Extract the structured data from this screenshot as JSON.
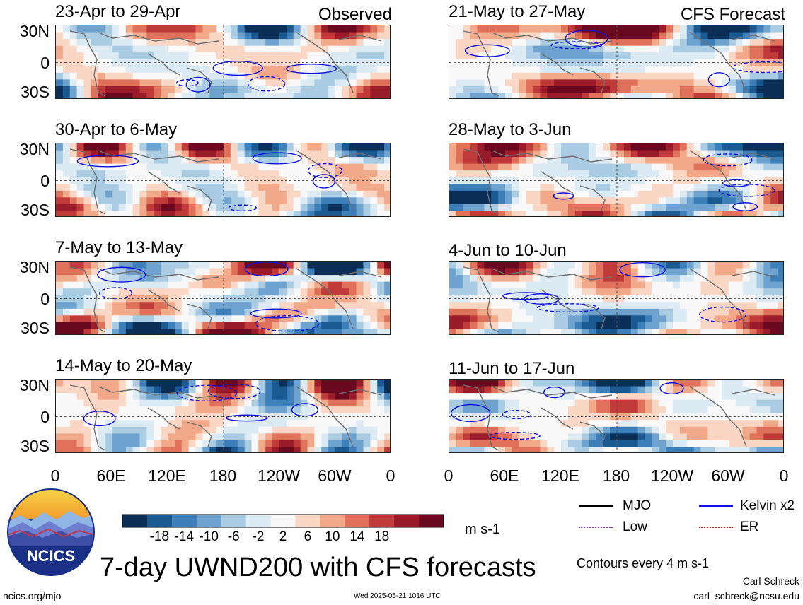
{
  "chart_data": {
    "type": "heatmap",
    "title": "7-day UWND200 with CFS forecasts",
    "colorbar": {
      "unit_label": "m s-1",
      "tick_labels": [
        "-18",
        "-14",
        "-10",
        "-6",
        "-2",
        "2",
        "6",
        "10",
        "14",
        "18"
      ],
      "colors": [
        "#0b2f57",
        "#1a5a91",
        "#3d7fb8",
        "#6ea3cf",
        "#a9cce3",
        "#dceaf3",
        "#f8f8f8",
        "#f9d7c4",
        "#f2a98a",
        "#e0725c",
        "#c03a3a",
        "#9a1b2a",
        "#6a0a20"
      ]
    },
    "y_tick_labels": [
      "30N",
      "0",
      "30S"
    ],
    "x_tick_labels": [
      "0",
      "60E",
      "120E",
      "180",
      "120W",
      "60W",
      "0"
    ],
    "columns": [
      {
        "header": "Observed",
        "panels": [
          {
            "title": "23-Apr to 29-Apr",
            "seed": 11
          },
          {
            "title": "30-Apr to 6-May",
            "seed": 23
          },
          {
            "title": "7-May to 13-May",
            "seed": 37
          },
          {
            "title": "14-May to 20-May",
            "seed": 41
          }
        ]
      },
      {
        "header": "CFS Forecast",
        "panels": [
          {
            "title": "21-May to 27-May",
            "seed": 53
          },
          {
            "title": "28-May to 3-Jun",
            "seed": 67
          },
          {
            "title": "4-Jun to 10-Jun",
            "seed": 79
          },
          {
            "title": "11-Jun to 17-Jun",
            "seed": 83
          }
        ]
      }
    ],
    "contour_legend": [
      {
        "label": "MJO",
        "color": "#000000"
      },
      {
        "label": "Kelvin x2",
        "color": "#1010e0"
      },
      {
        "label": "Low",
        "color": "#9a30d0"
      },
      {
        "label": "ER",
        "color": "#e01010"
      }
    ],
    "contour_note": "Contours every 4 m s-1"
  },
  "logo": {
    "text": "NCICS"
  },
  "footer": {
    "left": "ncics.org/mjo",
    "center": "Wed 2025-05-21 1016 UTC",
    "author": "Carl Schreck",
    "email": "carl_schreck@ncsu.edu"
  }
}
